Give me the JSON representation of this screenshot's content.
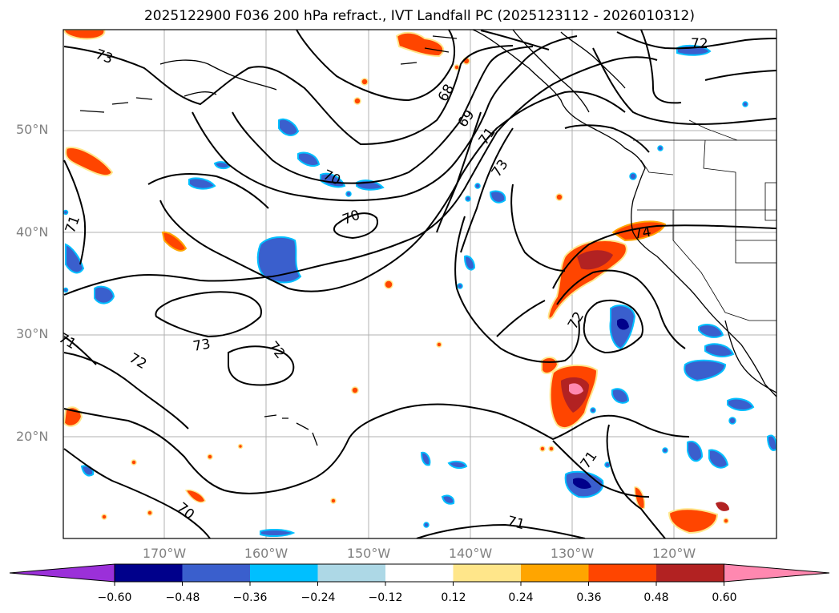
{
  "title": "2025122900 F036 200 hPa refract., IVT Landfall PC (2025123112 - 2026010312)",
  "map": {
    "lat_labels": [
      "50°N",
      "40°N",
      "30°N",
      "20°N"
    ],
    "lon_labels": [
      "170°W",
      "160°W",
      "150°W",
      "140°W",
      "130°W",
      "120°W"
    ],
    "contour_labels": [
      "73",
      "70",
      "70",
      "68",
      "69",
      "71",
      "73",
      "72",
      "71",
      "74",
      "73",
      "72",
      "72",
      "72",
      "71",
      "71",
      "70",
      "71",
      "71"
    ]
  },
  "colorbar": {
    "ticks": [
      "−0.60",
      "−0.48",
      "−0.36",
      "−0.24",
      "−0.12",
      "0.12",
      "0.24",
      "0.36",
      "0.48",
      "0.60"
    ],
    "colors": [
      "#9b30d9",
      "#00008b",
      "#3a5fcd",
      "#00bfff",
      "#add8e6",
      "#ffffff",
      "#ffe68a",
      "#ffa500",
      "#ff4500",
      "#b22222",
      "#ff88b0"
    ]
  }
}
